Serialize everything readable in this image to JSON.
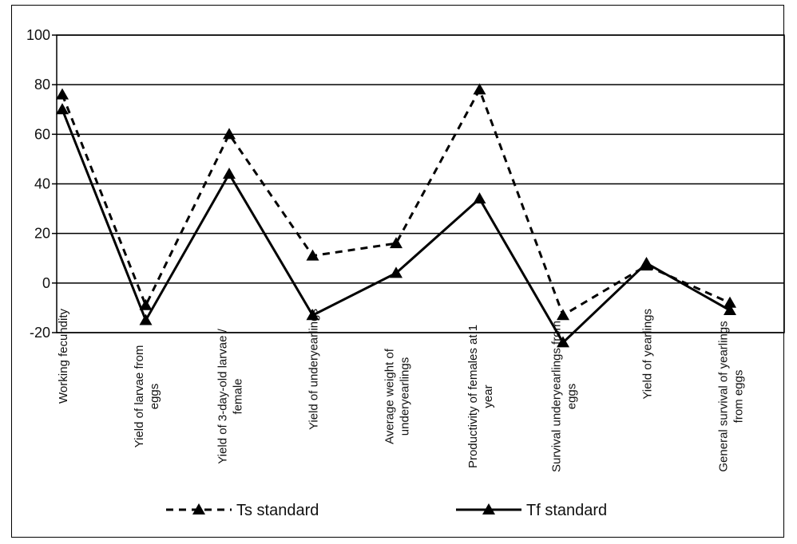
{
  "chart_data": {
    "type": "line",
    "title": "",
    "xlabel": "",
    "ylabel": "",
    "ylim": [
      -20,
      100
    ],
    "yticks": [
      -20,
      0,
      20,
      40,
      60,
      80,
      100
    ],
    "grid": true,
    "legend_position": "bottom",
    "categories": [
      [
        "Working fecundity"
      ],
      [
        "Yield of larvae from",
        "eggs"
      ],
      [
        "Yield of 3-day-old larvae /",
        "female"
      ],
      [
        "Yield of underyearlings"
      ],
      [
        "Average weight of",
        "underyearlings"
      ],
      [
        "Productivity of females at 1",
        "year"
      ],
      [
        "Survival underyearlings from",
        "eggs"
      ],
      [
        "Yield of yearlings"
      ],
      [
        "General survival of yearlings",
        "from eggs"
      ]
    ],
    "series": [
      {
        "name": "Ts standard",
        "style": "dashed",
        "color": "#000000",
        "values": [
          76,
          -9,
          60,
          11,
          16,
          78,
          -13,
          7,
          -8
        ]
      },
      {
        "name": "Tf standard",
        "style": "solid",
        "color": "#000000",
        "values": [
          70,
          -15,
          44,
          -13,
          4,
          34,
          -24,
          8,
          -11
        ]
      }
    ]
  }
}
